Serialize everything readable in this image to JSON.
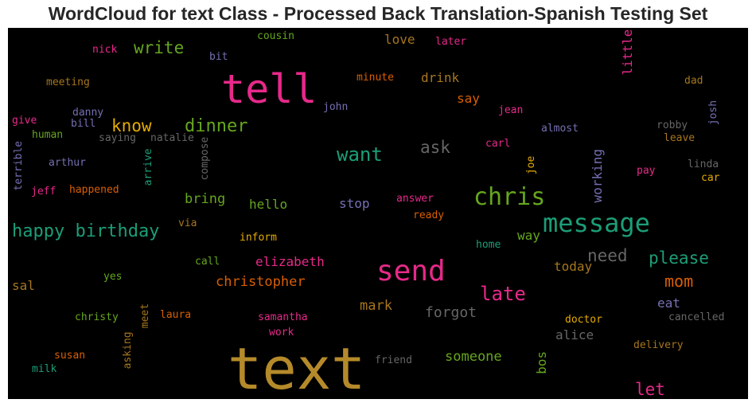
{
  "title": "WordCloud for text Class - Processed Back Translation-Spanish Testing Set",
  "words": [
    {
      "text": "text",
      "color": "#b58a2a"
    },
    {
      "text": "tell",
      "color": "#e7298a"
    },
    {
      "text": "send",
      "color": "#e7298a"
    },
    {
      "text": "message",
      "color": "#1b9e77"
    },
    {
      "text": "chris",
      "color": "#66a61e"
    },
    {
      "text": "happy birthday",
      "color": "#1b9e77"
    },
    {
      "text": "dinner",
      "color": "#66a61e"
    },
    {
      "text": "know",
      "color": "#e6ab02"
    },
    {
      "text": "want",
      "color": "#1b9e77"
    },
    {
      "text": "write",
      "color": "#66a61e"
    },
    {
      "text": "late",
      "color": "#e7298a"
    },
    {
      "text": "please",
      "color": "#1b9e77"
    },
    {
      "text": "ask",
      "color": "#666666"
    },
    {
      "text": "need",
      "color": "#666666"
    },
    {
      "text": "mom",
      "color": "#d95f02"
    },
    {
      "text": "let",
      "color": "#e7298a"
    },
    {
      "text": "christopher",
      "color": "#d95f02"
    },
    {
      "text": "elizabeth",
      "color": "#e7298a"
    },
    {
      "text": "forgot",
      "color": "#666666"
    },
    {
      "text": "mark",
      "color": "#a6761d"
    },
    {
      "text": "someone",
      "color": "#66a61e"
    },
    {
      "text": "bring",
      "color": "#66a61e"
    },
    {
      "text": "hello",
      "color": "#66a61e"
    },
    {
      "text": "stop",
      "color": "#7570b3"
    },
    {
      "text": "love",
      "color": "#a6761d"
    },
    {
      "text": "drink",
      "color": "#a6761d"
    },
    {
      "text": "say",
      "color": "#d95f02"
    },
    {
      "text": "today",
      "color": "#a6761d"
    },
    {
      "text": "way",
      "color": "#66a61e"
    },
    {
      "text": "alice",
      "color": "#666666"
    },
    {
      "text": "eat",
      "color": "#7570b3"
    },
    {
      "text": "bos",
      "color": "#66a61e"
    },
    {
      "text": "working",
      "color": "#7570b3"
    },
    {
      "text": "little",
      "color": "#e7298a"
    },
    {
      "text": "sal",
      "color": "#a6761d"
    },
    {
      "text": "nick",
      "color": "#e7298a"
    },
    {
      "text": "cousin",
      "color": "#66a61e"
    },
    {
      "text": "bit",
      "color": "#7570b3"
    },
    {
      "text": "later",
      "color": "#e7298a"
    },
    {
      "text": "meeting",
      "color": "#a6761d"
    },
    {
      "text": "minute",
      "color": "#d95f02"
    },
    {
      "text": "dad",
      "color": "#a6761d"
    },
    {
      "text": "john",
      "color": "#7570b3"
    },
    {
      "text": "jean",
      "color": "#e7298a"
    },
    {
      "text": "danny",
      "color": "#7570b3"
    },
    {
      "text": "bill",
      "color": "#7570b3"
    },
    {
      "text": "give",
      "color": "#e7298a"
    },
    {
      "text": "human",
      "color": "#66a61e"
    },
    {
      "text": "saying",
      "color": "#666666"
    },
    {
      "text": "natalie",
      "color": "#666666"
    },
    {
      "text": "almost",
      "color": "#7570b3"
    },
    {
      "text": "robby",
      "color": "#666666"
    },
    {
      "text": "leave",
      "color": "#a6761d"
    },
    {
      "text": "josh",
      "color": "#7570b3"
    },
    {
      "text": "carl",
      "color": "#e7298a"
    },
    {
      "text": "arthur",
      "color": "#7570b3"
    },
    {
      "text": "terrible",
      "color": "#7570b3"
    },
    {
      "text": "arrive",
      "color": "#1b9e77"
    },
    {
      "text": "compose",
      "color": "#666666"
    },
    {
      "text": "joe",
      "color": "#e6ab02"
    },
    {
      "text": "linda",
      "color": "#666666"
    },
    {
      "text": "pay",
      "color": "#e7298a"
    },
    {
      "text": "car",
      "color": "#e6ab02"
    },
    {
      "text": "jeff",
      "color": "#e7298a"
    },
    {
      "text": "happened",
      "color": "#d95f02"
    },
    {
      "text": "answer",
      "color": "#e7298a"
    },
    {
      "text": "ready",
      "color": "#d95f02"
    },
    {
      "text": "via",
      "color": "#a6761d"
    },
    {
      "text": "inform",
      "color": "#e6ab02"
    },
    {
      "text": "home",
      "color": "#1b9e77"
    },
    {
      "text": "call",
      "color": "#66a61e"
    },
    {
      "text": "yes",
      "color": "#66a61e"
    },
    {
      "text": "christy",
      "color": "#66a61e"
    },
    {
      "text": "meet",
      "color": "#a6761d"
    },
    {
      "text": "laura",
      "color": "#d95f02"
    },
    {
      "text": "samantha",
      "color": "#e7298a"
    },
    {
      "text": "work",
      "color": "#e7298a"
    },
    {
      "text": "doctor",
      "color": "#e6ab02"
    },
    {
      "text": "cancelled",
      "color": "#666666"
    },
    {
      "text": "susan",
      "color": "#d95f02"
    },
    {
      "text": "asking",
      "color": "#a6761d"
    },
    {
      "text": "milk",
      "color": "#1b9e77"
    },
    {
      "text": "friend",
      "color": "#666666"
    },
    {
      "text": "delivery",
      "color": "#a6761d"
    }
  ]
}
